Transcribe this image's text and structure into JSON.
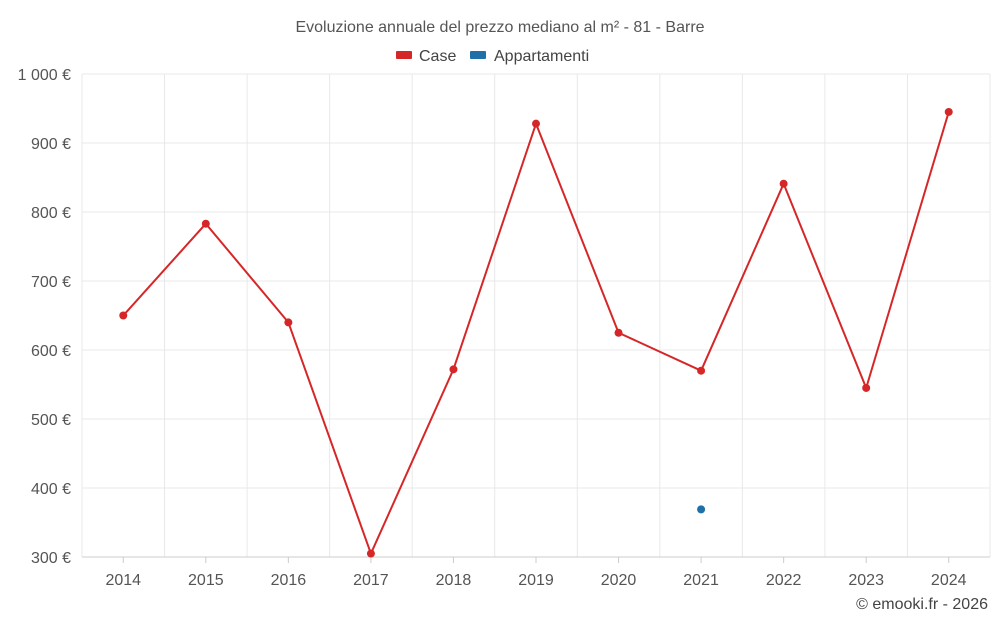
{
  "chart_data": {
    "type": "line",
    "title": "Evoluzione annuale del prezzo mediano al m² - 81 - Barre",
    "categories": [
      "2014",
      "2015",
      "2016",
      "2017",
      "2018",
      "2019",
      "2020",
      "2021",
      "2022",
      "2023",
      "2024"
    ],
    "ylim": [
      300,
      1000
    ],
    "yticks": [
      300,
      400,
      500,
      600,
      700,
      800,
      900,
      1000
    ],
    "ytick_labels": [
      "300 €",
      "400 €",
      "500 €",
      "600 €",
      "700 €",
      "800 €",
      "900 €",
      "1 000 €"
    ],
    "legend_position": "top-center",
    "grid": true,
    "series": [
      {
        "name": "Case",
        "color": "#d62728",
        "values": [
          650,
          783,
          640,
          305,
          572,
          928,
          625,
          570,
          841,
          545,
          945
        ]
      },
      {
        "name": "Appartamenti",
        "color": "#1f6fa8",
        "values": [
          null,
          null,
          null,
          null,
          null,
          null,
          null,
          369,
          null,
          null,
          null
        ]
      }
    ],
    "credit": "© emooki.fr - 2026"
  }
}
